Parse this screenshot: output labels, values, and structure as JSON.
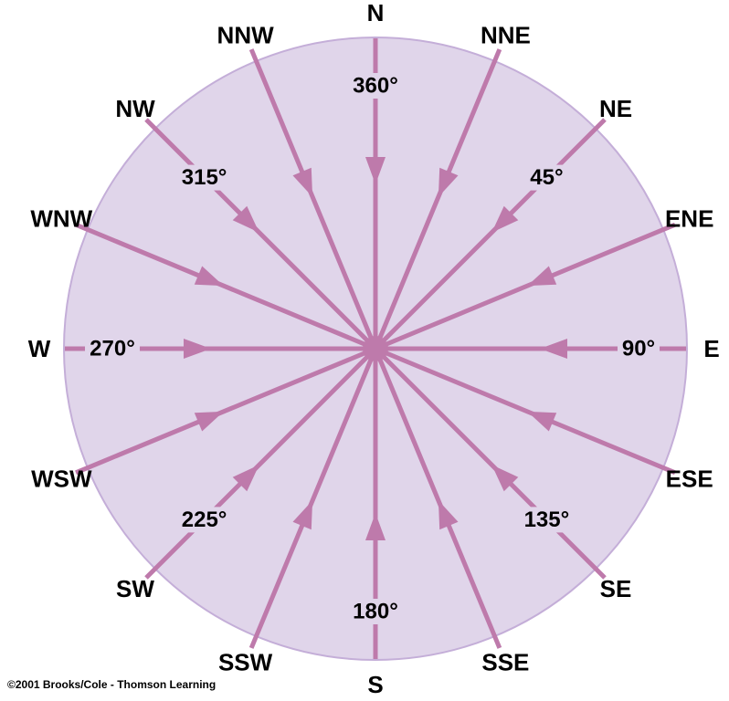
{
  "diagram": {
    "colors": {
      "disk_fill": "#e0d5ea",
      "disk_stroke": "#c4aed8",
      "line": "#be7aab",
      "text": "#000000"
    },
    "directions": [
      {
        "name": "N",
        "bearing": 0,
        "degree": "360°"
      },
      {
        "name": "NNE",
        "bearing": 22.5,
        "degree": ""
      },
      {
        "name": "NE",
        "bearing": 45,
        "degree": "45°"
      },
      {
        "name": "ENE",
        "bearing": 67.5,
        "degree": ""
      },
      {
        "name": "E",
        "bearing": 90,
        "degree": "90°"
      },
      {
        "name": "ESE",
        "bearing": 112.5,
        "degree": ""
      },
      {
        "name": "SE",
        "bearing": 135,
        "degree": "135°"
      },
      {
        "name": "SSE",
        "bearing": 157.5,
        "degree": ""
      },
      {
        "name": "S",
        "bearing": 180,
        "degree": "180°"
      },
      {
        "name": "SSW",
        "bearing": 202.5,
        "degree": ""
      },
      {
        "name": "SW",
        "bearing": 225,
        "degree": "225°"
      },
      {
        "name": "WSW",
        "bearing": 247.5,
        "degree": ""
      },
      {
        "name": "W",
        "bearing": 270,
        "degree": "270°"
      },
      {
        "name": "WNW",
        "bearing": 292.5,
        "degree": ""
      },
      {
        "name": "NW",
        "bearing": 315,
        "degree": "315°"
      },
      {
        "name": "NNW",
        "bearing": 337.5,
        "degree": ""
      }
    ]
  },
  "credit": "©2001 Brooks/Cole - Thomson Learning"
}
